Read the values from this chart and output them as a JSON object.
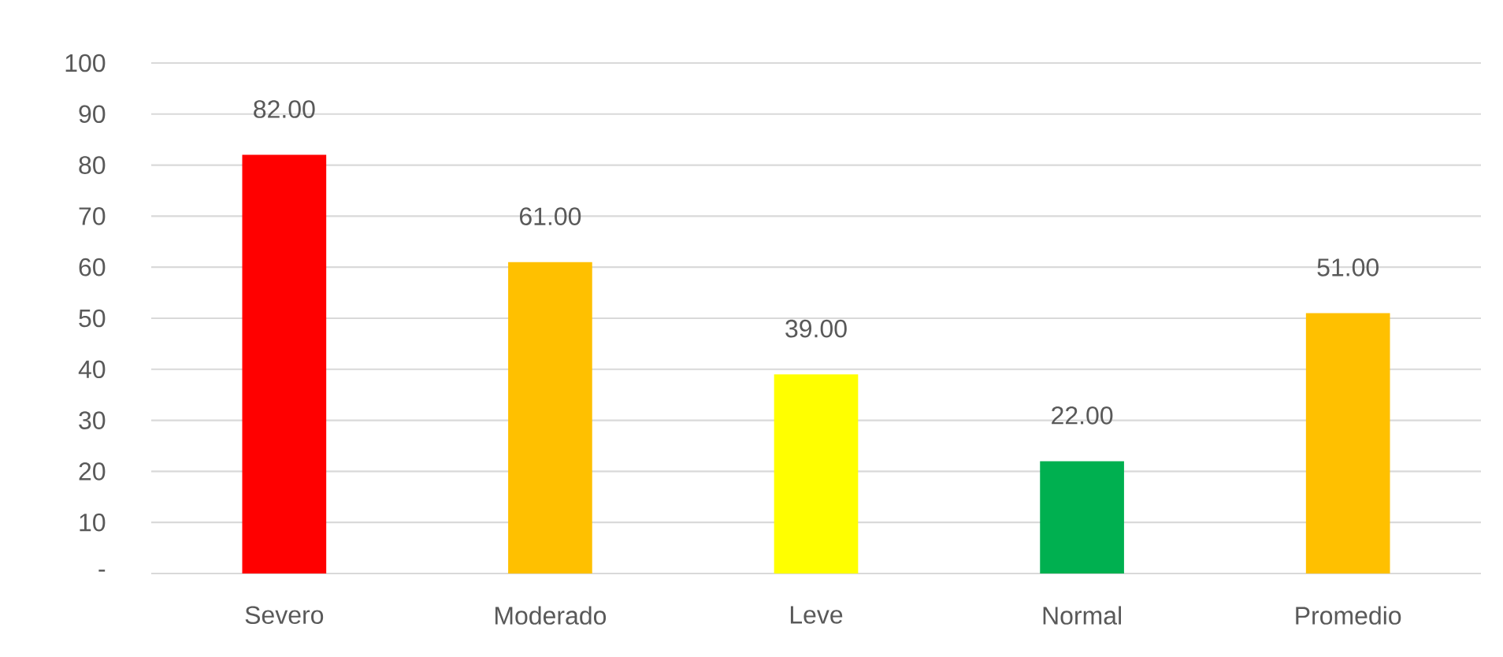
{
  "chart_data": {
    "type": "bar",
    "categories": [
      "Severo",
      "Moderado",
      "Leve",
      "Normal",
      "Promedio"
    ],
    "values": [
      82,
      61,
      39,
      22,
      51
    ],
    "value_labels": [
      "82.00",
      "61.00",
      "39.00",
      "22.00",
      "51.00"
    ],
    "colors": [
      "#ff0000",
      "#ffc000",
      "#ffff00",
      "#00b050",
      "#ffc000"
    ],
    "ylim": [
      0,
      100
    ],
    "yticks": [
      {
        "value": 0,
        "label": "-"
      },
      10,
      20,
      30,
      40,
      50,
      60,
      70,
      80,
      90,
      100
    ],
    "grid": "y"
  }
}
